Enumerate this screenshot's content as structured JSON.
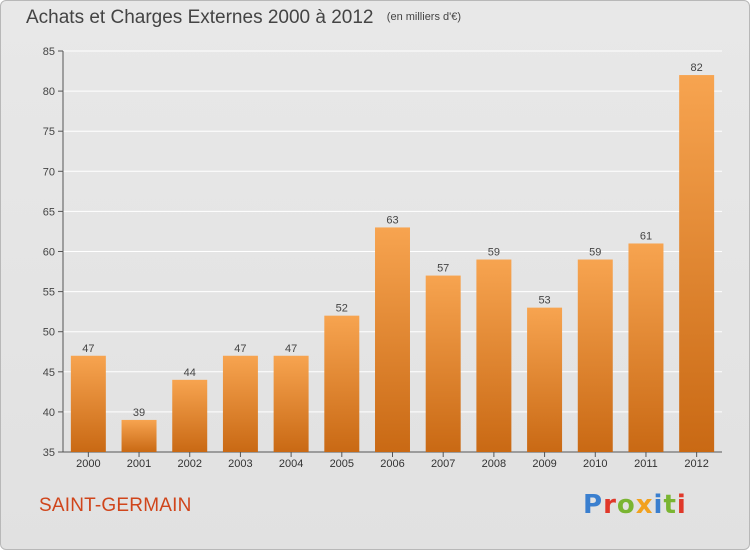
{
  "title": "Achats et Charges Externes 2000 à 2012",
  "subtitle": "(en milliers d'€)",
  "footer": {
    "city": "SAINT-GERMAIN",
    "logo_text": "Proxiti"
  },
  "colors": {
    "bar_top": "#f7a450",
    "bar_bottom": "#c96914",
    "city": "#d0451b"
  },
  "chart_data": {
    "type": "bar",
    "categories": [
      "2000",
      "2001",
      "2002",
      "2003",
      "2004",
      "2005",
      "2006",
      "2007",
      "2008",
      "2009",
      "2010",
      "2011",
      "2012"
    ],
    "values": [
      47,
      39,
      44,
      47,
      47,
      52,
      63,
      57,
      59,
      53,
      59,
      61,
      82
    ],
    "ylim": [
      35,
      85
    ],
    "yticks": [
      35,
      40,
      45,
      50,
      55,
      60,
      65,
      70,
      75,
      80,
      85
    ],
    "grid": true,
    "xlabel": "",
    "ylabel": ""
  }
}
